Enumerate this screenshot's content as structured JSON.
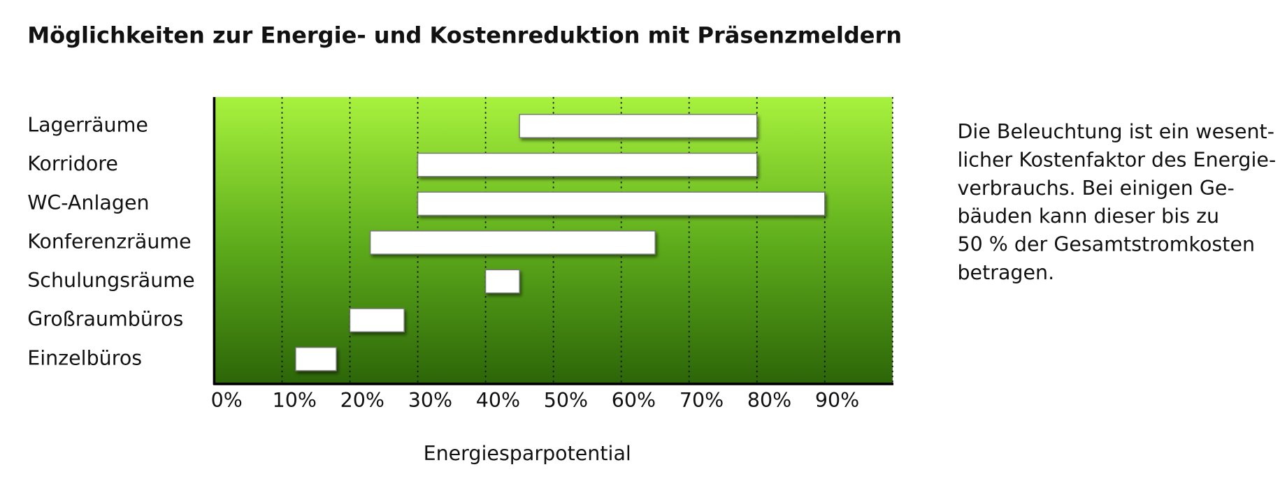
{
  "chart_data": {
    "type": "range-bar",
    "title": "Möglichkeiten zur Energie- und Kostenreduktion mit Präsenzmeldern",
    "categories": [
      "Lagerräume",
      "Korridore",
      "WC-Anlagen",
      "Konferenzräume",
      "Schulungsräume",
      "Großraumbüros",
      "Einzelbüros"
    ],
    "starts": [
      45,
      30,
      30,
      23,
      40,
      20,
      12
    ],
    "ends": [
      80,
      80,
      90,
      65,
      45,
      28,
      18
    ],
    "xlim": [
      0,
      100
    ],
    "xticks": [
      {
        "value": 0,
        "label": "0%"
      },
      {
        "value": 10,
        "label": "10%"
      },
      {
        "value": 20,
        "label": "20%"
      },
      {
        "value": 30,
        "label": "30%"
      },
      {
        "value": 40,
        "label": "40%"
      },
      {
        "value": 50,
        "label": "50%"
      },
      {
        "value": 60,
        "label": "60%"
      },
      {
        "value": 70,
        "label": "70%"
      },
      {
        "value": 80,
        "label": "80%"
      },
      {
        "value": 90,
        "label": "90%"
      }
    ],
    "x_label": "Energiesparpotential",
    "grid": true,
    "color": "#ffffff",
    "note_lines": [
      "Die Beleuchtung ist ein wesent-",
      "licher Kostenfaktor des Energie-",
      "verbrauchs. Bei einigen Ge-",
      "bäuden kann dieser bis zu",
      "50 % der Gesamtstromkosten",
      "betragen."
    ]
  }
}
